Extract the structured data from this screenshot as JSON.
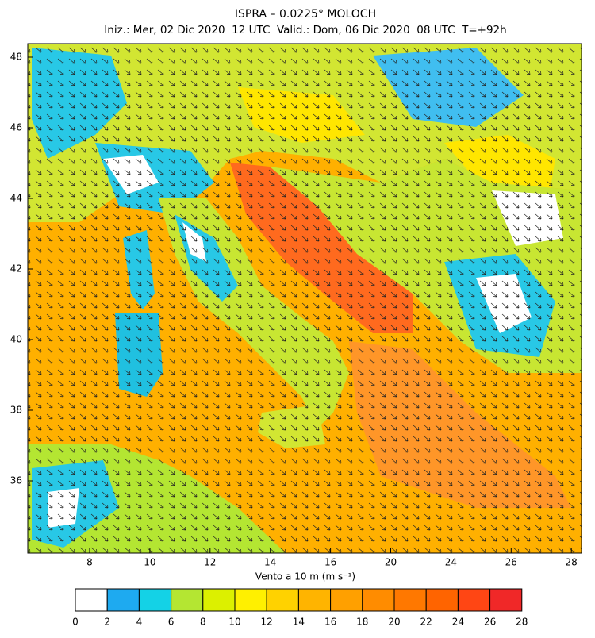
{
  "map": {
    "title": "ISPRA – 0.0225° MOLOCH",
    "subtitle": "Iniz.: Mer, 02 Dic 2020  12 UTC  Valid.: Dom, 06 Dic 2020  08 UTC  T=+92h",
    "lat_labels": [
      48,
      46,
      44,
      42,
      40,
      38,
      36
    ],
    "lon_labels": [
      8,
      10,
      12,
      14,
      16,
      20,
      24,
      26,
      28
    ]
  },
  "colorbar": {
    "label": "Vento a 10 m (m s⁻¹)",
    "ticks": [
      0,
      2,
      4,
      6,
      8,
      10,
      12,
      14,
      16,
      18,
      20,
      22,
      24,
      26,
      28
    ],
    "colors": [
      "#ffffff",
      "#1eaaf0",
      "#14d2e6",
      "#b4e632",
      "#dcf000",
      "#fff000",
      "#ffd200",
      "#ffb400",
      "#ffa000",
      "#ff8c00",
      "#ff7800",
      "#ff6400",
      "#ff4614",
      "#f02828"
    ]
  }
}
